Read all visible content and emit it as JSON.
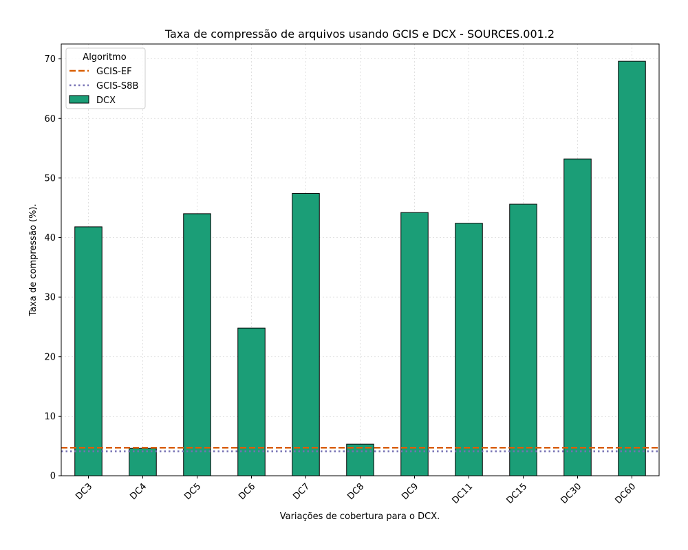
{
  "chart_data": {
    "type": "bar",
    "title": "Taxa de compressão de arquivos usando GCIS e DCX -  SOURCES.001.2",
    "xlabel": "Variações de cobertura para o DCX.",
    "ylabel": "Taxa de compressão (%).",
    "categories": [
      "DC3",
      "DC4",
      "DC5",
      "DC6",
      "DC7",
      "DC8",
      "DC9",
      "DC11",
      "DC15",
      "DC30",
      "DC60"
    ],
    "series": [
      {
        "name": "DCX",
        "values": [
          41.8,
          4.6,
          44.0,
          24.8,
          47.4,
          5.3,
          44.2,
          42.4,
          45.6,
          53.2,
          69.6
        ],
        "color": "#1b9e77"
      }
    ],
    "reference_lines": [
      {
        "name": "GCIS-EF",
        "value": 4.7,
        "color": "#d95f02",
        "style": "dashed"
      },
      {
        "name": "GCIS-S8B",
        "value": 4.1,
        "color": "#7570b3",
        "style": "dotted"
      }
    ],
    "legend": {
      "title": "Algoritmo",
      "placement": "top-left",
      "entries": [
        "GCIS-EF",
        "GCIS-S8B",
        "DCX"
      ]
    },
    "yticks": [
      0,
      10,
      20,
      30,
      40,
      50,
      60,
      70
    ],
    "ylim": [
      0,
      72.5
    ],
    "grid": true
  }
}
